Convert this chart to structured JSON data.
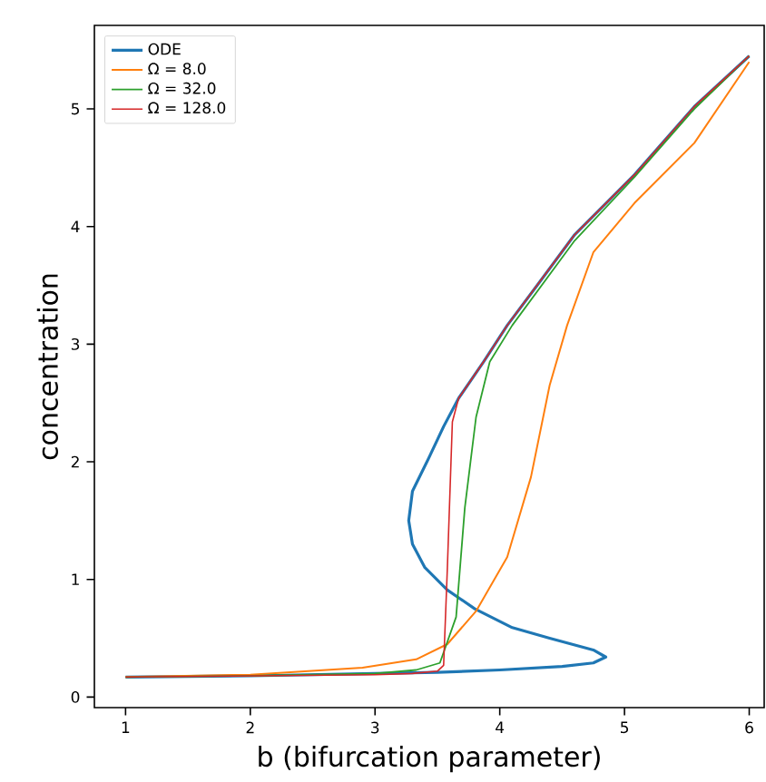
{
  "chart_data": {
    "type": "line",
    "xlabel": "b (bifurcation parameter)",
    "ylabel": "concentration",
    "xlim": [
      0.75,
      6.12
    ],
    "ylim": [
      -0.09,
      5.71
    ],
    "xticks": [
      1,
      2,
      3,
      4,
      5,
      6
    ],
    "yticks": [
      0,
      1,
      2,
      3,
      4,
      5
    ],
    "legend": "top left",
    "grid": false,
    "series": [
      {
        "name": "ODE",
        "color": "#1f77b4",
        "x": [
          1,
          2,
          3,
          3.5,
          4,
          4.5,
          4.75,
          4.85,
          4.75,
          4.4,
          4.1,
          3.8,
          3.58,
          3.4,
          3.3,
          3.27,
          3.3,
          3.43,
          3.55,
          3.67,
          3.87,
          4.06,
          4.3,
          4.6,
          5.08,
          5.56,
          6
        ],
        "values": [
          0.17,
          0.18,
          0.2,
          0.21,
          0.23,
          0.26,
          0.29,
          0.34,
          0.4,
          0.5,
          0.59,
          0.75,
          0.91,
          1.1,
          1.3,
          1.5,
          1.75,
          2.03,
          2.3,
          2.54,
          2.85,
          3.16,
          3.5,
          3.93,
          4.44,
          5.02,
          5.45
        ]
      },
      {
        "name": "Ω = 8.0",
        "color": "#ff7f0e",
        "x": [
          1,
          2,
          2.9,
          3.33,
          3.58,
          3.81,
          4.06,
          4.25,
          4.4,
          4.54,
          4.75,
          5.08,
          5.56,
          6
        ],
        "values": [
          0.17,
          0.19,
          0.25,
          0.32,
          0.45,
          0.73,
          1.19,
          1.87,
          2.65,
          3.16,
          3.78,
          4.2,
          4.71,
          5.4
        ]
      },
      {
        "name": "Ω = 32.0",
        "color": "#2ca02c",
        "x": [
          1,
          2,
          3,
          3.33,
          3.52,
          3.65,
          3.72,
          3.81,
          3.92,
          4.1,
          4.6,
          5.08,
          5.56,
          6
        ],
        "values": [
          0.17,
          0.18,
          0.2,
          0.23,
          0.29,
          0.68,
          1.61,
          2.38,
          2.85,
          3.16,
          3.88,
          4.42,
          5.0,
          5.45
        ]
      },
      {
        "name": "Ω = 128.0",
        "color": "#d62728",
        "x": [
          1,
          2,
          3,
          3.3,
          3.5,
          3.55,
          3.58,
          3.62,
          3.67,
          3.87,
          4.06,
          4.6,
          5.08,
          5.56,
          6
        ],
        "values": [
          0.17,
          0.18,
          0.19,
          0.2,
          0.22,
          0.27,
          1.1,
          2.34,
          2.54,
          2.85,
          3.16,
          3.93,
          4.44,
          5.02,
          5.45
        ]
      }
    ]
  }
}
